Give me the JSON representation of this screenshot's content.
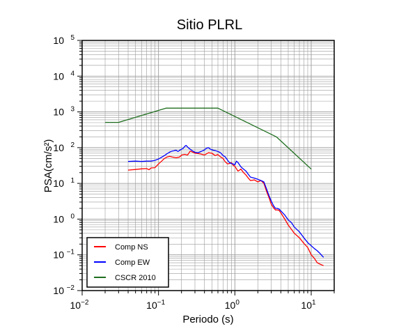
{
  "chart_data": {
    "type": "line",
    "title": "Sitio PLRL",
    "xlabel": "Periodo (s)",
    "ylabel": "PSA(cm/s²)",
    "xscale": "log",
    "yscale": "log",
    "xlim": [
      0.01,
      20
    ],
    "ylim": [
      0.01,
      100000
    ],
    "grid": true,
    "legend_position": "bottom-left",
    "x_ticks": [
      {
        "value": 0.01,
        "base": "10",
        "exp": "−2"
      },
      {
        "value": 0.1,
        "base": "10",
        "exp": "−1"
      },
      {
        "value": 1,
        "base": "10",
        "exp": "0"
      },
      {
        "value": 10,
        "base": "10",
        "exp": "1"
      }
    ],
    "y_ticks": [
      {
        "value": 0.01,
        "base": "10",
        "exp": "−2"
      },
      {
        "value": 0.1,
        "base": "10",
        "exp": "−1"
      },
      {
        "value": 1,
        "base": "10",
        "exp": "0"
      },
      {
        "value": 10,
        "base": "10",
        "exp": "1"
      },
      {
        "value": 100,
        "base": "10",
        "exp": "2"
      },
      {
        "value": 1000,
        "base": "10",
        "exp": "3"
      },
      {
        "value": 10000,
        "base": "10",
        "exp": "4"
      },
      {
        "value": 100000,
        "base": "10",
        "exp": "5"
      }
    ],
    "series": [
      {
        "name": "Comp NS",
        "color": "#ff0000",
        "points": [
          [
            0.04,
            23.5
          ],
          [
            0.05,
            24.5
          ],
          [
            0.06,
            25.5
          ],
          [
            0.07,
            26
          ],
          [
            0.075,
            24
          ],
          [
            0.08,
            27
          ],
          [
            0.09,
            27.5
          ],
          [
            0.1,
            35
          ],
          [
            0.11,
            42
          ],
          [
            0.12,
            50
          ],
          [
            0.13,
            55
          ],
          [
            0.14,
            57
          ],
          [
            0.15,
            55
          ],
          [
            0.17,
            52
          ],
          [
            0.19,
            55
          ],
          [
            0.2,
            62
          ],
          [
            0.22,
            65
          ],
          [
            0.24,
            62
          ],
          [
            0.26,
            80
          ],
          [
            0.28,
            75
          ],
          [
            0.3,
            70
          ],
          [
            0.33,
            68
          ],
          [
            0.36,
            66
          ],
          [
            0.4,
            62
          ],
          [
            0.45,
            72
          ],
          [
            0.5,
            70
          ],
          [
            0.55,
            60
          ],
          [
            0.6,
            64
          ],
          [
            0.65,
            55
          ],
          [
            0.7,
            50
          ],
          [
            0.75,
            40
          ],
          [
            0.8,
            35
          ],
          [
            0.85,
            36
          ],
          [
            0.9,
            38
          ],
          [
            0.95,
            32
          ],
          [
            1.0,
            30
          ],
          [
            1.1,
            22
          ],
          [
            1.2,
            25
          ],
          [
            1.3,
            20
          ],
          [
            1.4,
            17
          ],
          [
            1.5,
            14
          ],
          [
            1.6,
            12
          ],
          [
            1.8,
            12.5
          ],
          [
            2.0,
            11
          ],
          [
            2.2,
            12
          ],
          [
            2.4,
            10
          ],
          [
            2.6,
            6
          ],
          [
            2.8,
            4
          ],
          [
            3.0,
            2.6
          ],
          [
            3.2,
            2.1
          ],
          [
            3.4,
            1.8
          ],
          [
            3.6,
            1.8
          ],
          [
            3.8,
            1.75
          ],
          [
            4.0,
            1.5
          ],
          [
            4.5,
            1.0
          ],
          [
            5.0,
            0.68
          ],
          [
            5.5,
            0.52
          ],
          [
            6.0,
            0.4
          ],
          [
            7.0,
            0.3
          ],
          [
            8.0,
            0.21
          ],
          [
            9.0,
            0.16
          ],
          [
            10.0,
            0.1
          ],
          [
            11.0,
            0.08
          ],
          [
            12.0,
            0.06
          ],
          [
            13.0,
            0.055
          ],
          [
            14.5,
            0.05
          ]
        ]
      },
      {
        "name": "Comp EW",
        "color": "#0000ff",
        "points": [
          [
            0.04,
            41
          ],
          [
            0.05,
            42
          ],
          [
            0.06,
            41
          ],
          [
            0.07,
            42
          ],
          [
            0.08,
            42
          ],
          [
            0.09,
            44
          ],
          [
            0.1,
            48
          ],
          [
            0.11,
            54
          ],
          [
            0.12,
            60
          ],
          [
            0.13,
            68
          ],
          [
            0.14,
            75
          ],
          [
            0.15,
            80
          ],
          [
            0.16,
            82
          ],
          [
            0.17,
            85
          ],
          [
            0.18,
            78
          ],
          [
            0.19,
            85
          ],
          [
            0.2,
            90
          ],
          [
            0.21,
            95
          ],
          [
            0.22,
            108
          ],
          [
            0.23,
            115
          ],
          [
            0.25,
            96
          ],
          [
            0.27,
            85
          ],
          [
            0.3,
            74
          ],
          [
            0.33,
            72
          ],
          [
            0.36,
            78
          ],
          [
            0.4,
            86
          ],
          [
            0.42,
            95
          ],
          [
            0.45,
            100
          ],
          [
            0.48,
            90
          ],
          [
            0.52,
            85
          ],
          [
            0.56,
            82
          ],
          [
            0.6,
            78
          ],
          [
            0.65,
            72
          ],
          [
            0.7,
            60
          ],
          [
            0.75,
            55
          ],
          [
            0.8,
            45
          ],
          [
            0.85,
            38
          ],
          [
            0.9,
            36
          ],
          [
            0.95,
            35
          ],
          [
            1.0,
            33
          ],
          [
            1.05,
            42
          ],
          [
            1.1,
            38
          ],
          [
            1.2,
            29
          ],
          [
            1.3,
            25
          ],
          [
            1.4,
            22
          ],
          [
            1.5,
            18
          ],
          [
            1.6,
            15
          ],
          [
            1.8,
            14
          ],
          [
            2.0,
            13
          ],
          [
            2.2,
            12
          ],
          [
            2.4,
            11
          ],
          [
            2.6,
            7
          ],
          [
            2.8,
            4.5
          ],
          [
            3.0,
            3.2
          ],
          [
            3.2,
            2.4
          ],
          [
            3.4,
            2.0
          ],
          [
            3.6,
            2.0
          ],
          [
            3.8,
            1.9
          ],
          [
            4.0,
            1.7
          ],
          [
            4.5,
            1.3
          ],
          [
            5.0,
            0.95
          ],
          [
            5.5,
            0.8
          ],
          [
            6.0,
            0.6
          ],
          [
            7.0,
            0.44
          ],
          [
            8.0,
            0.3
          ],
          [
            9.0,
            0.22
          ],
          [
            10.0,
            0.18
          ],
          [
            11.0,
            0.15
          ],
          [
            12.0,
            0.13
          ],
          [
            13.0,
            0.11
          ],
          [
            14.5,
            0.085
          ]
        ]
      },
      {
        "name": "CSCR 2010",
        "color": "#1e6e1e",
        "points": [
          [
            0.02,
            510
          ],
          [
            0.03,
            510
          ],
          [
            0.125,
            1275
          ],
          [
            0.6,
            1275
          ],
          [
            3.5,
            200
          ],
          [
            10.0,
            25
          ]
        ]
      }
    ]
  }
}
